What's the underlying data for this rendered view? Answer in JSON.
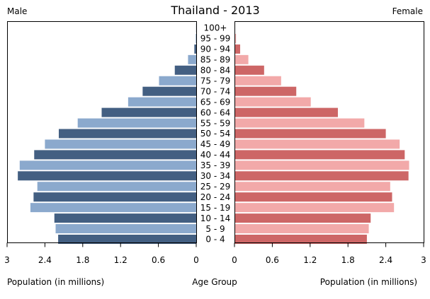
{
  "chart_data": {
    "type": "bar",
    "title": "Thailand - 2013",
    "left_header": "Male",
    "right_header": "Female",
    "center_label": "Age Group",
    "xlabel_left": "Population (in millions)",
    "xlabel_right": "Population (in millions)",
    "xlim": [
      0,
      3
    ],
    "ticks": [
      3,
      2.4,
      1.8,
      1.2,
      0.6,
      0
    ],
    "tick_labels_left": [
      "3",
      "2.4",
      "1.8",
      "1.2",
      "0.6",
      "0"
    ],
    "tick_labels_right": [
      "0",
      "0.6",
      "1.2",
      "1.8",
      "2.4",
      "3"
    ],
    "categories": [
      "100+",
      "95 - 99",
      "90 - 94",
      "85 - 89",
      "80 - 84",
      "75 - 79",
      "70 - 74",
      "65 - 69",
      "60 - 64",
      "55 - 59",
      "50 - 54",
      "45 - 49",
      "40 - 44",
      "35 - 39",
      "30 - 34",
      "25 - 29",
      "20 - 24",
      "15 - 19",
      "10 - 14",
      "5 - 9",
      "0 - 4"
    ],
    "series": [
      {
        "name": "Male",
        "values": [
          0.002,
          0.008,
          0.03,
          0.13,
          0.34,
          0.59,
          0.85,
          1.08,
          1.5,
          1.88,
          2.18,
          2.4,
          2.57,
          2.8,
          2.83,
          2.52,
          2.58,
          2.63,
          2.25,
          2.23,
          2.19
        ]
      },
      {
        "name": "Female",
        "values": [
          0.005,
          0.025,
          0.09,
          0.22,
          0.47,
          0.74,
          0.98,
          1.21,
          1.64,
          2.06,
          2.4,
          2.62,
          2.7,
          2.77,
          2.76,
          2.47,
          2.5,
          2.53,
          2.16,
          2.13,
          2.1
        ]
      }
    ],
    "colors": {
      "male_dark": "#435f82",
      "male_light": "#8ba9cd",
      "female_dark": "#cd6666",
      "female_light": "#f2a9a9"
    }
  }
}
